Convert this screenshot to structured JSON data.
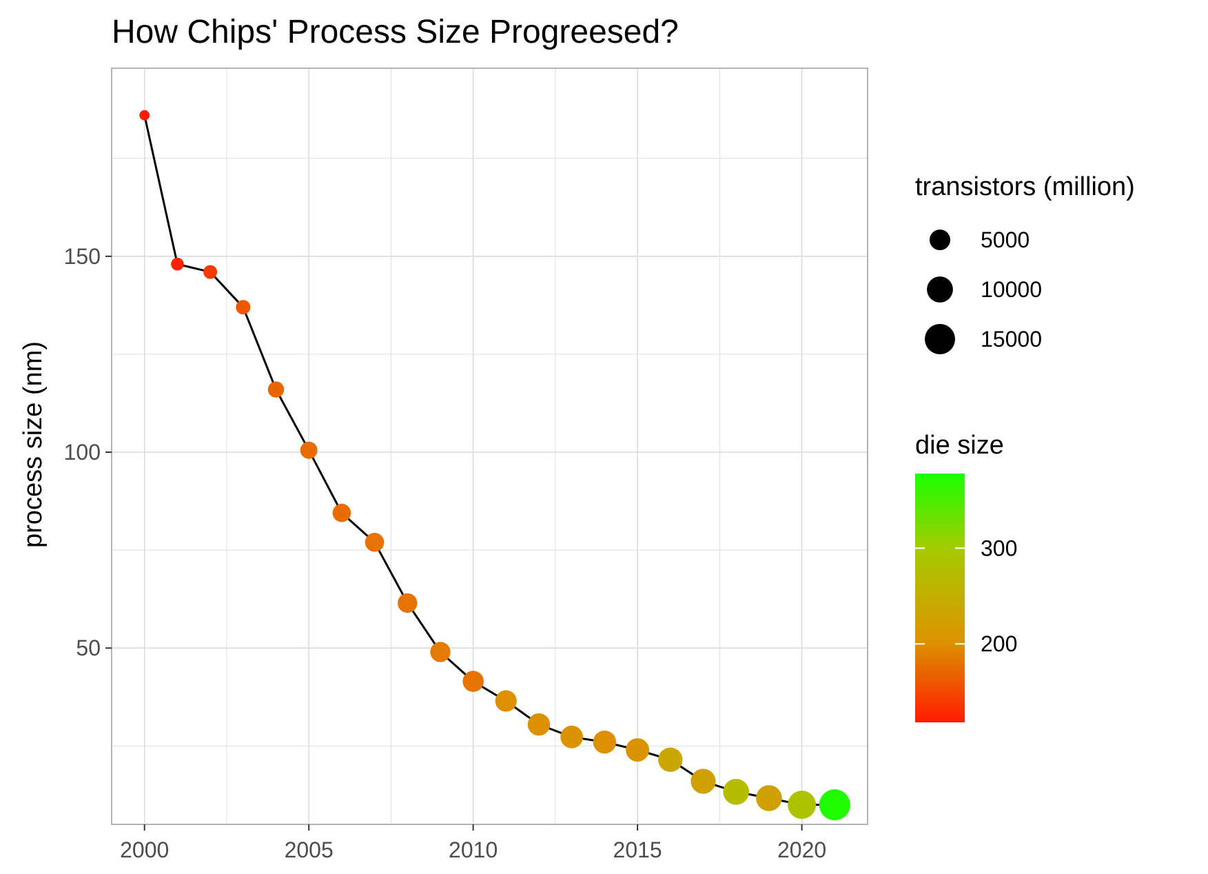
{
  "chart_data": {
    "type": "scatter",
    "title": "How Chips' Process Size Progreesed?",
    "xlabel": "",
    "ylabel": "process size (nm)",
    "xlim": [
      1999,
      2022
    ],
    "ylim": [
      5,
      198
    ],
    "x_ticks": [
      2000,
      2005,
      2010,
      2015,
      2020
    ],
    "x_tick_labels": [
      "2000",
      "2005",
      "2010",
      "2015",
      "2020"
    ],
    "y_ticks": [
      50,
      100,
      150
    ],
    "y_tick_labels": [
      "50",
      "100",
      "150"
    ],
    "grid": true,
    "connecting_line": true,
    "series": [
      {
        "name": "process size",
        "x": [
          2000,
          2001,
          2002,
          2003,
          2004,
          2005,
          2006,
          2007,
          2008,
          2009,
          2010,
          2011,
          2012,
          2013,
          2014,
          2015,
          2016,
          2017,
          2018,
          2019,
          2020,
          2021
        ],
        "y": [
          186,
          148,
          146,
          137,
          116,
          100.5,
          84.5,
          77,
          61.5,
          49,
          41.5,
          36.5,
          30.5,
          27.3,
          26,
          24,
          21.5,
          16,
          13.3,
          11.7,
          10,
          10
        ],
        "transistors_million": [
          200,
          800,
          1100,
          1400,
          2100,
          2700,
          3400,
          3800,
          4200,
          4700,
          5300,
          5700,
          6300,
          6600,
          7000,
          7300,
          8200,
          8800,
          9800,
          9800,
          12400,
          16000
        ],
        "die_size": [
          120,
          125,
          140,
          160,
          170,
          175,
          175,
          180,
          180,
          185,
          180,
          200,
          200,
          205,
          200,
          205,
          235,
          225,
          275,
          225,
          285,
          375
        ]
      }
    ],
    "legends": {
      "size": {
        "title": "transistors (million)",
        "values": [
          5000,
          10000,
          15000
        ],
        "labels": [
          "5000",
          "10000",
          "15000"
        ]
      },
      "color": {
        "title": "die size",
        "min": 118,
        "max": 378,
        "ticks": [
          200,
          300
        ],
        "tick_labels": [
          "200",
          "300"
        ],
        "low_color": "#ff1a00",
        "mid_color": "#dd9200",
        "high_color": "#1aff00"
      },
      "position": "right"
    },
    "colors": {
      "line": "#000000",
      "grid": "#dcdcdc",
      "panel_border": "#b3b3b3",
      "tick_text": "#4d4d4d"
    }
  }
}
